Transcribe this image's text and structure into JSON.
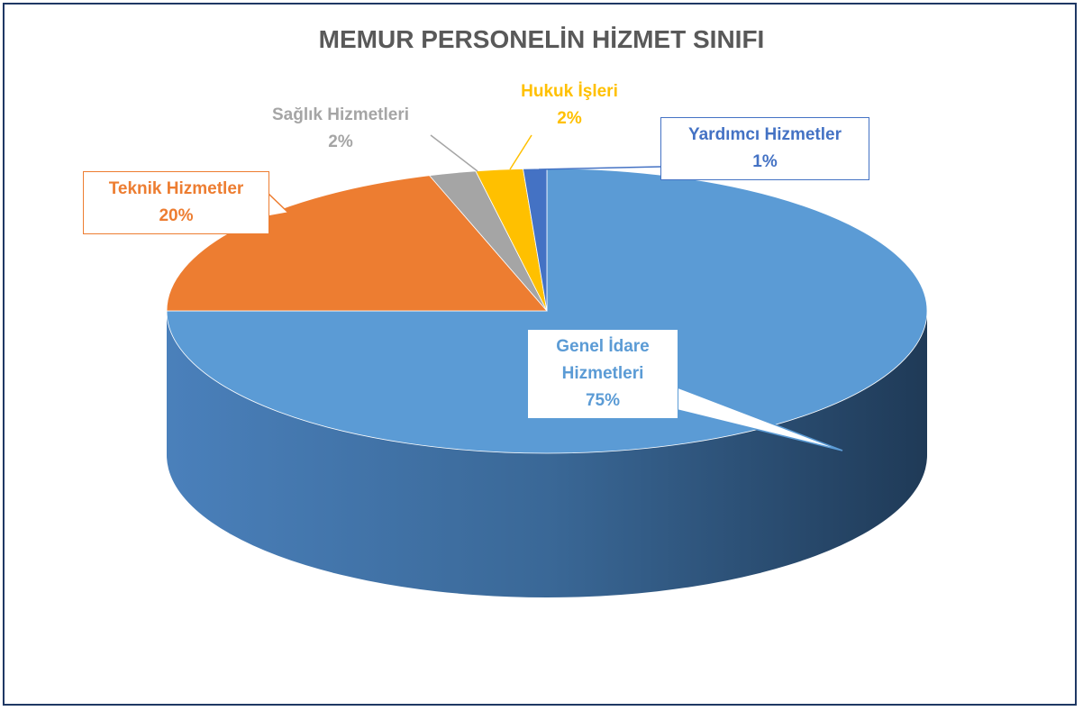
{
  "chart_data": {
    "type": "pie",
    "title": "MEMUR PERSONELİN HİZMET SINIFI",
    "categories": [
      "Genel İdare Hizmetleri",
      "Teknik Hizmetler",
      "Sağlık Hizmetleri",
      "Hukuk İşleri",
      "Yardımcı Hizmetler"
    ],
    "values": [
      75,
      20,
      2,
      2,
      1
    ],
    "value_labels": [
      "75%",
      "20%",
      "2%",
      "2%",
      "1%"
    ],
    "colors": [
      "#5b9bd5",
      "#ed7d31",
      "#a5a5a5",
      "#ffc000",
      "#4472c4"
    ]
  }
}
